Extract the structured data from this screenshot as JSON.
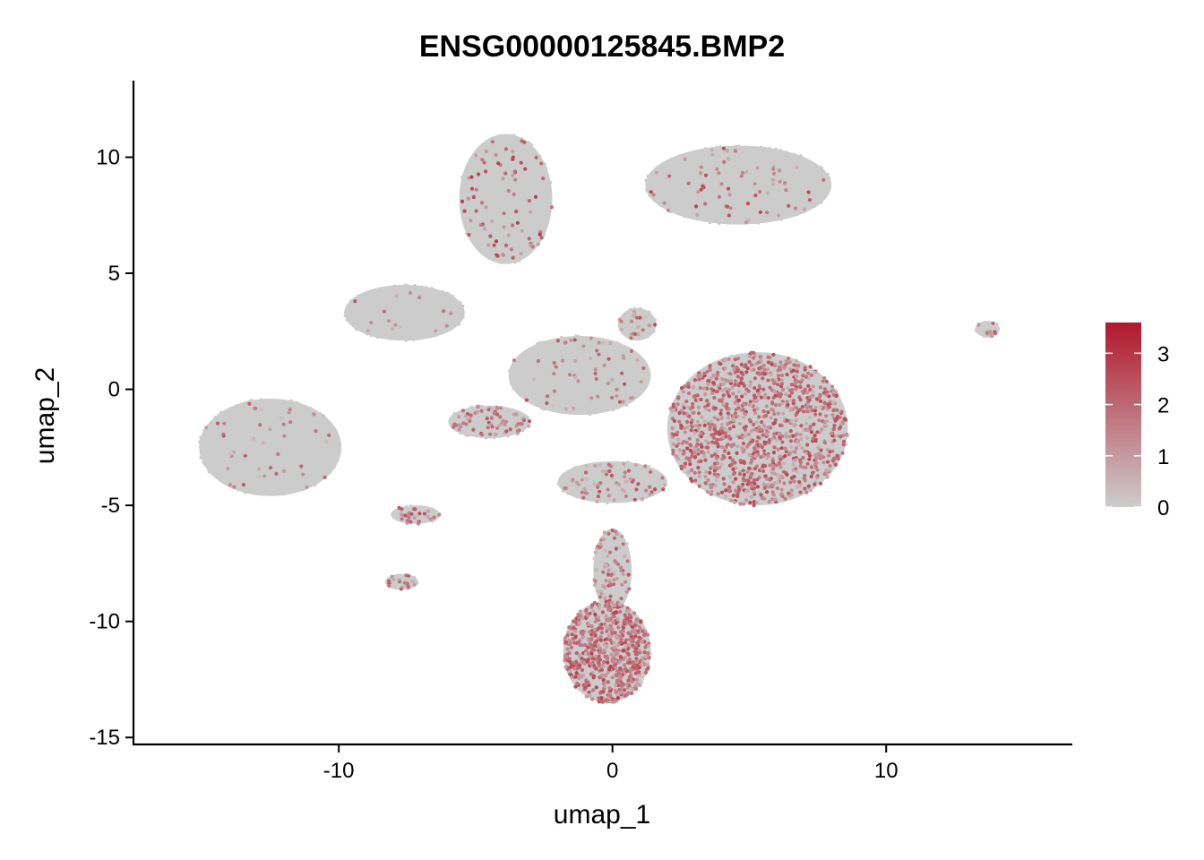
{
  "chart_data": {
    "type": "scatter",
    "title": "ENSG00000125845.BMP2",
    "xlabel": "umap_1",
    "ylabel": "umap_2",
    "xlim": [
      -17.5,
      16.8
    ],
    "ylim": [
      -15.3,
      13.3
    ],
    "xticks": [
      -10,
      0,
      10
    ],
    "yticks": [
      -15,
      -10,
      -5,
      0,
      5,
      10
    ],
    "grid": false,
    "legend": {
      "placement": "right",
      "ticks": [
        0,
        1,
        2,
        3
      ],
      "min": 0,
      "max": 3.6
    },
    "colors": {
      "low": "#CCCCCC",
      "high": "#B2182B"
    },
    "point_color_note": "expression level mapped from grey (0) to red (max)",
    "clusters": [
      {
        "name": "right-large",
        "cx": 5.3,
        "cy": -1.7,
        "rx": 3.3,
        "ry": 3.3,
        "n": 1300,
        "expr_frac": 0.85,
        "expr_mean": 1.6
      },
      {
        "name": "bottom",
        "cx": -0.2,
        "cy": -11.3,
        "rx": 1.6,
        "ry": 2.2,
        "n": 800,
        "expr_frac": 0.8,
        "expr_mean": 1.7
      },
      {
        "name": "bottom-stalk",
        "cx": 0.0,
        "cy": -7.8,
        "rx": 0.7,
        "ry": 1.8,
        "n": 200,
        "expr_frac": 0.35,
        "expr_mean": 1.3
      },
      {
        "name": "top-left",
        "cx": -3.9,
        "cy": 8.2,
        "rx": 1.7,
        "ry": 2.8,
        "n": 600,
        "expr_frac": 0.12,
        "expr_mean": 1.8
      },
      {
        "name": "top-right",
        "cx": 4.6,
        "cy": 8.8,
        "rx": 3.4,
        "ry": 1.7,
        "n": 700,
        "expr_frac": 0.1,
        "expr_mean": 1.6
      },
      {
        "name": "left-wing",
        "cx": -7.6,
        "cy": 3.3,
        "rx": 2.2,
        "ry": 1.2,
        "n": 500,
        "expr_frac": 0.03,
        "expr_mean": 1.4
      },
      {
        "name": "far-left",
        "cx": -12.5,
        "cy": -2.5,
        "rx": 2.6,
        "ry": 2.1,
        "n": 600,
        "expr_frac": 0.08,
        "expr_mean": 1.1
      },
      {
        "name": "center-left",
        "cx": -4.5,
        "cy": -1.4,
        "rx": 1.5,
        "ry": 0.7,
        "n": 220,
        "expr_frac": 0.3,
        "expr_mean": 1.5
      },
      {
        "name": "center",
        "cx": -1.2,
        "cy": 0.6,
        "rx": 2.6,
        "ry": 1.7,
        "n": 450,
        "expr_frac": 0.12,
        "expr_mean": 1.4
      },
      {
        "name": "center-top",
        "cx": 0.9,
        "cy": 2.8,
        "rx": 0.7,
        "ry": 0.7,
        "n": 90,
        "expr_frac": 0.3,
        "expr_mean": 1.4
      },
      {
        "name": "center-low",
        "cx": 0.0,
        "cy": -4.0,
        "rx": 2.0,
        "ry": 0.9,
        "n": 220,
        "expr_frac": 0.3,
        "expr_mean": 1.4
      },
      {
        "name": "small-1",
        "cx": -7.2,
        "cy": -5.4,
        "rx": 0.9,
        "ry": 0.4,
        "n": 60,
        "expr_frac": 0.4,
        "expr_mean": 1.4
      },
      {
        "name": "small-2",
        "cx": -7.7,
        "cy": -8.3,
        "rx": 0.6,
        "ry": 0.35,
        "n": 40,
        "expr_frac": 0.4,
        "expr_mean": 1.4
      },
      {
        "name": "far-right",
        "cx": 13.7,
        "cy": 2.6,
        "rx": 0.45,
        "ry": 0.35,
        "n": 30,
        "expr_frac": 0.5,
        "expr_mean": 1.5
      }
    ]
  }
}
